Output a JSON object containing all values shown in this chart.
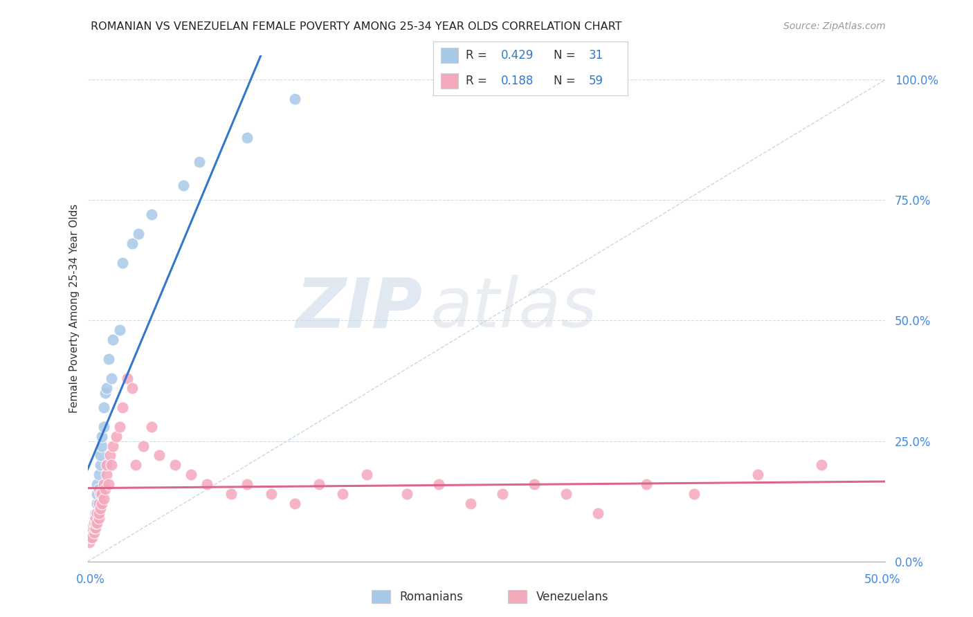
{
  "title": "ROMANIAN VS VENEZUELAN FEMALE POVERTY AMONG 25-34 YEAR OLDS CORRELATION CHART",
  "source": "Source: ZipAtlas.com",
  "ylabel": "Female Poverty Among 25-34 Year Olds",
  "xlim": [
    0.0,
    0.5
  ],
  "ylim": [
    0.0,
    1.05
  ],
  "ytick_labels": [
    "0.0%",
    "25.0%",
    "50.0%",
    "75.0%",
    "100.0%"
  ],
  "ytick_values": [
    0.0,
    0.25,
    0.5,
    0.75,
    1.0
  ],
  "romanian_color": "#a8c8e8",
  "venezuelan_color": "#f4a8bc",
  "regression_romanian_color": "#3377cc",
  "regression_venezuelan_color": "#dd6688",
  "diagonal_color": "#c0ccd8",
  "watermark_zip": "ZIP",
  "watermark_atlas": "atlas",
  "background_color": "#ffffff",
  "grid_color": "#d0dde8",
  "rom_r": "0.429",
  "rom_n": "31",
  "ven_r": "0.188",
  "ven_n": "59",
  "romanians_x": [
    0.002,
    0.003,
    0.004,
    0.004,
    0.005,
    0.005,
    0.006,
    0.006,
    0.006,
    0.007,
    0.007,
    0.008,
    0.008,
    0.009,
    0.009,
    0.01,
    0.01,
    0.011,
    0.012,
    0.013,
    0.015,
    0.016,
    0.02,
    0.022,
    0.028,
    0.032,
    0.04,
    0.06,
    0.07,
    0.1,
    0.13
  ],
  "romanians_y": [
    0.05,
    0.06,
    0.07,
    0.08,
    0.08,
    0.1,
    0.12,
    0.14,
    0.16,
    0.15,
    0.18,
    0.2,
    0.22,
    0.24,
    0.26,
    0.28,
    0.32,
    0.35,
    0.36,
    0.42,
    0.38,
    0.46,
    0.48,
    0.62,
    0.66,
    0.68,
    0.72,
    0.78,
    0.83,
    0.88,
    0.96
  ],
  "venezuelans_x": [
    0.001,
    0.002,
    0.002,
    0.003,
    0.003,
    0.004,
    0.004,
    0.004,
    0.005,
    0.005,
    0.005,
    0.006,
    0.006,
    0.007,
    0.007,
    0.007,
    0.008,
    0.008,
    0.009,
    0.009,
    0.01,
    0.01,
    0.011,
    0.012,
    0.012,
    0.013,
    0.014,
    0.015,
    0.016,
    0.018,
    0.02,
    0.022,
    0.025,
    0.028,
    0.03,
    0.035,
    0.04,
    0.045,
    0.055,
    0.065,
    0.075,
    0.09,
    0.1,
    0.115,
    0.13,
    0.145,
    0.16,
    0.175,
    0.2,
    0.22,
    0.24,
    0.26,
    0.28,
    0.3,
    0.32,
    0.35,
    0.38,
    0.42,
    0.46
  ],
  "venezuelans_y": [
    0.04,
    0.05,
    0.06,
    0.05,
    0.07,
    0.06,
    0.07,
    0.08,
    0.07,
    0.08,
    0.09,
    0.08,
    0.1,
    0.09,
    0.1,
    0.12,
    0.11,
    0.14,
    0.12,
    0.14,
    0.13,
    0.16,
    0.15,
    0.18,
    0.2,
    0.16,
    0.22,
    0.2,
    0.24,
    0.26,
    0.28,
    0.32,
    0.38,
    0.36,
    0.2,
    0.24,
    0.28,
    0.22,
    0.2,
    0.18,
    0.16,
    0.14,
    0.16,
    0.14,
    0.12,
    0.16,
    0.14,
    0.18,
    0.14,
    0.16,
    0.12,
    0.14,
    0.16,
    0.14,
    0.1,
    0.16,
    0.14,
    0.18,
    0.2
  ]
}
